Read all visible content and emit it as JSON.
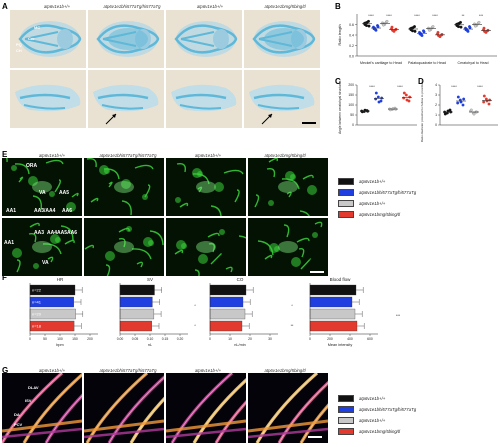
{
  "colors": {
    "wt": "#111111",
    "mut1": "#1f3fe0",
    "wt2": "#c8c8c8",
    "mut2": "#e23a2e",
    "alcian": "#5fb8d8",
    "gfp": "#3bd43b"
  },
  "panels": {
    "a": "A",
    "b": "B",
    "c": "C",
    "d": "D",
    "e": "E",
    "f": "F",
    "g": "G"
  },
  "col_headers": [
    "atp6v1e1b+/+",
    "atp6v1e1bhi577aTg/hi577aTg",
    "atp6v1e1b+/+",
    "atp6v1e1bmg/5bing/tl"
  ],
  "panelA": {
    "labels": {
      "mc": "MC",
      "cer": "Cer",
      "pq": "PQ",
      "ch": "CH"
    }
  },
  "panelE": {
    "labels": {
      "ora": "ORA",
      "va": "VA",
      "aa1": "AA1",
      "aa3aa4": "AA3/AA4",
      "aa5": "AA5",
      "aa6": "AA6",
      "aa3": "AA3",
      "aa4": "AA4",
      "aa5b": "AA5",
      "aa6b": "AA6"
    }
  },
  "panelG": {
    "labels": {
      "dlav": "DLAV",
      "isv": "ISV",
      "da": "DA",
      "pcv": "PCV"
    }
  },
  "legend": [
    {
      "label": "atp6v1e1b+/+",
      "color": "#111111"
    },
    {
      "label": "atp6v1e1bhi577aTg/hi577aTg",
      "color": "#1f3fe0"
    },
    {
      "label": "atp6v1e1b+/+",
      "color": "#c8c8c8"
    },
    {
      "label": "atp6v1e1bmg/5bing/tl",
      "color": "#e23a2e"
    }
  ],
  "chartB": {
    "ylabel": "Ratio length",
    "yticks": [
      "0.0",
      "0.2",
      "0.4",
      "0.6"
    ],
    "groups": [
      "Meckel's cartilage to Head",
      "Palatoquadrate to Head",
      "Ceratohyal to Head"
    ],
    "stars": [
      "****",
      "****",
      "****",
      "****",
      "**",
      "***"
    ]
  },
  "chartC": {
    "ylabel": "Angle between ceratohyal structures (°)",
    "yticks": [
      "0",
      "50",
      "100",
      "150",
      "200"
    ],
    "stars": [
      "****",
      "****"
    ]
  },
  "chartD": {
    "ylabel": "Ratio diameter proximal to hollow to proximal ceratohyal",
    "yticks": [
      "0",
      "1",
      "2",
      "3",
      "4"
    ],
    "stars": [
      "****",
      "****"
    ]
  },
  "chartF": {
    "type": "bar",
    "panels": [
      {
        "title": "HR",
        "xlabel": "bpm",
        "xticks": [
          "0",
          "50",
          "100",
          "150",
          "200"
        ],
        "values": [
          150,
          146,
          152,
          147
        ],
        "n": [
          "n=22",
          "n=41",
          "n=20",
          "n=18"
        ]
      },
      {
        "title": "SV",
        "xlabel": "nL",
        "xticks": [
          "0.00",
          "0.05",
          "0.10",
          "0.15",
          "0.20"
        ],
        "values": [
          0.115,
          0.108,
          0.113,
          0.106
        ]
      },
      {
        "title": "CO",
        "xlabel": "nL/min",
        "xticks": [
          "0",
          "10",
          "20",
          "30"
        ],
        "values": [
          18,
          16.5,
          17.5,
          16
        ]
      },
      {
        "title": "Blood flow",
        "xlabel": "Mean intensity",
        "xticks": [
          "0",
          "200",
          "400",
          "600"
        ],
        "values": [
          460,
          420,
          450,
          470
        ]
      }
    ],
    "stars": [
      "*",
      "*",
      "*",
      "**",
      "***"
    ]
  }
}
